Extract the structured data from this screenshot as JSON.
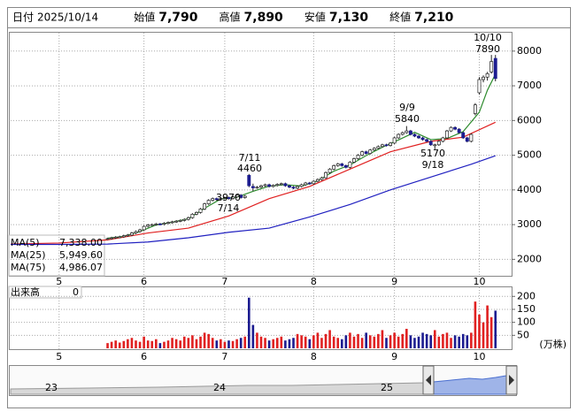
{
  "header": {
    "items": [
      {
        "label": "日付",
        "value": "2025/10/14",
        "color": "#000000"
      },
      {
        "label": "始値",
        "value": "7,790",
        "color": "#000000"
      },
      {
        "label": "高値",
        "value": "7,890",
        "color": "#e00000"
      },
      {
        "label": "安値",
        "value": "7,130",
        "color": "#008000"
      },
      {
        "label": "終値",
        "value": "7,210",
        "color": "#000000"
      }
    ]
  },
  "chart_data": {
    "type": "candlestick",
    "up_color": "#ffffff",
    "down_color": "#1c1c90",
    "xlim": [
      -24,
      100
    ],
    "xticks": [
      {
        "value": -12,
        "label": "5"
      },
      {
        "value": 9,
        "label": "6"
      },
      {
        "value": 29,
        "label": "7"
      },
      {
        "value": 51,
        "label": "8"
      },
      {
        "value": 71,
        "label": "9"
      },
      {
        "value": 92,
        "label": "10"
      }
    ],
    "ylim": [
      1500,
      8530
    ],
    "yticks": [
      2000,
      3000,
      4000,
      5000,
      6000,
      7000,
      8000
    ],
    "grid": true,
    "ohlc": [
      [
        2580,
        2620,
        2560,
        2600
      ],
      [
        2600,
        2650,
        2570,
        2620
      ],
      [
        2620,
        2670,
        2590,
        2640
      ],
      [
        2640,
        2680,
        2610,
        2650
      ],
      [
        2650,
        2710,
        2620,
        2680
      ],
      [
        2680,
        2730,
        2650,
        2700
      ],
      [
        2700,
        2790,
        2670,
        2760
      ],
      [
        2760,
        2830,
        2730,
        2800
      ],
      [
        2800,
        2880,
        2770,
        2850
      ],
      [
        2850,
        2980,
        2820,
        2950
      ],
      [
        2950,
        3020,
        2920,
        2990
      ],
      [
        2990,
        3030,
        2960,
        3000
      ],
      [
        3000,
        3050,
        2970,
        3020
      ],
      [
        3020,
        3050,
        2980,
        3010
      ],
      [
        3010,
        3070,
        2980,
        3040
      ],
      [
        3040,
        3090,
        3010,
        3060
      ],
      [
        3060,
        3110,
        3030,
        3080
      ],
      [
        3080,
        3130,
        3050,
        3100
      ],
      [
        3100,
        3150,
        3070,
        3120
      ],
      [
        3120,
        3180,
        3090,
        3150
      ],
      [
        3150,
        3230,
        3120,
        3200
      ],
      [
        3200,
        3330,
        3170,
        3300
      ],
      [
        3300,
        3380,
        3270,
        3350
      ],
      [
        3350,
        3480,
        3320,
        3450
      ],
      [
        3450,
        3630,
        3420,
        3600
      ],
      [
        3600,
        3730,
        3570,
        3700
      ],
      [
        3700,
        3780,
        3670,
        3750
      ],
      [
        3750,
        3780,
        3690,
        3720
      ],
      [
        3720,
        3790,
        3690,
        3760
      ],
      [
        3760,
        3810,
        3730,
        3780
      ],
      [
        3780,
        3810,
        3720,
        3750
      ],
      [
        3750,
        3830,
        3720,
        3800
      ],
      [
        3800,
        3880,
        3770,
        3850
      ],
      [
        3850,
        3880,
        3750,
        3780
      ],
      [
        3780,
        3850,
        3750,
        3820
      ],
      [
        4420,
        4460,
        4080,
        4120
      ],
      [
        4100,
        4180,
        3970,
        4060
      ],
      [
        4060,
        4110,
        4030,
        4080
      ],
      [
        4080,
        4150,
        4050,
        4120
      ],
      [
        4120,
        4180,
        4090,
        4150
      ],
      [
        4150,
        4180,
        4070,
        4100
      ],
      [
        4100,
        4160,
        4070,
        4130
      ],
      [
        4130,
        4190,
        4100,
        4160
      ],
      [
        4160,
        4210,
        4130,
        4180
      ],
      [
        4180,
        4210,
        4090,
        4120
      ],
      [
        4120,
        4150,
        4050,
        4080
      ],
      [
        4080,
        4110,
        4020,
        4050
      ],
      [
        4050,
        4130,
        4020,
        4100
      ],
      [
        4100,
        4180,
        4070,
        4150
      ],
      [
        4150,
        4230,
        4120,
        4200
      ],
      [
        4200,
        4230,
        4150,
        4180
      ],
      [
        4180,
        4280,
        4150,
        4250
      ],
      [
        4250,
        4330,
        4220,
        4300
      ],
      [
        4300,
        4380,
        4270,
        4350
      ],
      [
        4350,
        4530,
        4320,
        4500
      ],
      [
        4500,
        4630,
        4470,
        4600
      ],
      [
        4600,
        4730,
        4570,
        4700
      ],
      [
        4700,
        4780,
        4670,
        4750
      ],
      [
        4750,
        4780,
        4670,
        4700
      ],
      [
        4700,
        4730,
        4620,
        4650
      ],
      [
        4650,
        4830,
        4620,
        4800
      ],
      [
        4800,
        4930,
        4770,
        4900
      ],
      [
        4900,
        5030,
        4870,
        5000
      ],
      [
        5000,
        5130,
        4970,
        5100
      ],
      [
        5100,
        5130,
        5020,
        5050
      ],
      [
        5050,
        5180,
        5020,
        5150
      ],
      [
        5150,
        5230,
        5120,
        5200
      ],
      [
        5200,
        5280,
        5170,
        5250
      ],
      [
        5250,
        5330,
        5220,
        5300
      ],
      [
        5300,
        5330,
        5250,
        5280
      ],
      [
        5280,
        5380,
        5250,
        5350
      ],
      [
        5350,
        5530,
        5320,
        5500
      ],
      [
        5500,
        5630,
        5470,
        5600
      ],
      [
        5600,
        5680,
        5570,
        5650
      ],
      [
        5650,
        5840,
        5620,
        5700
      ],
      [
        5700,
        5730,
        5570,
        5600
      ],
      [
        5600,
        5630,
        5520,
        5550
      ],
      [
        5550,
        5580,
        5470,
        5500
      ],
      [
        5500,
        5530,
        5420,
        5450
      ],
      [
        5450,
        5480,
        5370,
        5400
      ],
      [
        5400,
        5430,
        5270,
        5300
      ],
      [
        5280,
        5330,
        5170,
        5300
      ],
      [
        5300,
        5430,
        5270,
        5400
      ],
      [
        5400,
        5530,
        5370,
        5500
      ],
      [
        5500,
        5730,
        5470,
        5700
      ],
      [
        5700,
        5830,
        5670,
        5800
      ],
      [
        5800,
        5830,
        5720,
        5750
      ],
      [
        5750,
        5780,
        5620,
        5650
      ],
      [
        5650,
        5680,
        5470,
        5500
      ],
      [
        5500,
        5530,
        5370,
        5400
      ],
      [
        5400,
        5630,
        5370,
        5600
      ],
      [
        6200,
        6500,
        6150,
        6450
      ],
      [
        6800,
        7250,
        6750,
        7180
      ],
      [
        7180,
        7300,
        7100,
        7250
      ],
      [
        7250,
        7400,
        7150,
        7350
      ],
      [
        7400,
        7890,
        7350,
        7700
      ],
      [
        7790,
        7890,
        7130,
        7210
      ]
    ],
    "series": [
      {
        "name": "MA(5)",
        "legend_value": "7,338.00",
        "color": "#2e8b2e",
        "x": [
          0,
          4,
          8,
          12,
          16,
          20,
          24,
          28,
          32,
          36,
          40,
          44,
          48,
          52,
          56,
          60,
          64,
          68,
          72,
          76,
          80,
          84,
          88,
          92,
          94,
          96
        ],
        "values": [
          2610,
          2660,
          2800,
          2990,
          3070,
          3170,
          3470,
          3740,
          3790,
          3960,
          4110,
          4150,
          4110,
          4260,
          4540,
          4720,
          4990,
          5230,
          5440,
          5660,
          5450,
          5480,
          5680,
          6240,
          6870,
          7338
        ]
      },
      {
        "name": "MA(25)",
        "legend_value": "5,949.60",
        "color": "#e02020",
        "x": [
          -24,
          -12,
          0,
          10,
          20,
          30,
          40,
          50,
          60,
          70,
          80,
          88,
          96
        ],
        "values": [
          2440,
          2470,
          2560,
          2760,
          2900,
          3250,
          3750,
          4100,
          4600,
          5100,
          5400,
          5520,
          5949.6
        ]
      },
      {
        "name": "MA(75)",
        "legend_value": "4,986.07",
        "color": "#2020c0",
        "x": [
          -24,
          -12,
          0,
          10,
          20,
          30,
          40,
          50,
          60,
          70,
          80,
          90,
          96
        ],
        "values": [
          2430,
          2430,
          2440,
          2500,
          2620,
          2780,
          2900,
          3220,
          3580,
          4000,
          4370,
          4740,
          4986.07
        ]
      }
    ],
    "annotations": [
      {
        "date": "10/10",
        "price": 7890
      },
      {
        "date": "7/11",
        "price": 4460
      },
      {
        "date": "7/14",
        "price": 3970
      },
      {
        "date": "9/9",
        "price": 5840
      },
      {
        "date": "9/18",
        "price": 5170
      }
    ],
    "volume": {
      "label": "出来高",
      "label_value": 0,
      "unit": "(万株)",
      "ylim": [
        0,
        235
      ],
      "yticks": [
        50,
        100,
        150,
        200
      ],
      "values": [
        20,
        25,
        30,
        22,
        28,
        35,
        40,
        30,
        25,
        45,
        30,
        28,
        35,
        20,
        25,
        30,
        40,
        35,
        30,
        45,
        40,
        50,
        35,
        45,
        60,
        55,
        40,
        30,
        35,
        25,
        30,
        28,
        35,
        40,
        45,
        195,
        90,
        60,
        45,
        40,
        30,
        35,
        40,
        45,
        30,
        35,
        40,
        55,
        50,
        45,
        35,
        50,
        60,
        40,
        55,
        70,
        45,
        40,
        35,
        50,
        60,
        45,
        55,
        40,
        60,
        50,
        45,
        55,
        70,
        40,
        50,
        60,
        45,
        55,
        75,
        50,
        40,
        45,
        60,
        55,
        50,
        70,
        45,
        55,
        60,
        40,
        50,
        45,
        55,
        50,
        60,
        180,
        130,
        100,
        165,
        120,
        145
      ]
    },
    "navigator": {
      "labels": [
        "23",
        "24",
        "25"
      ]
    }
  }
}
